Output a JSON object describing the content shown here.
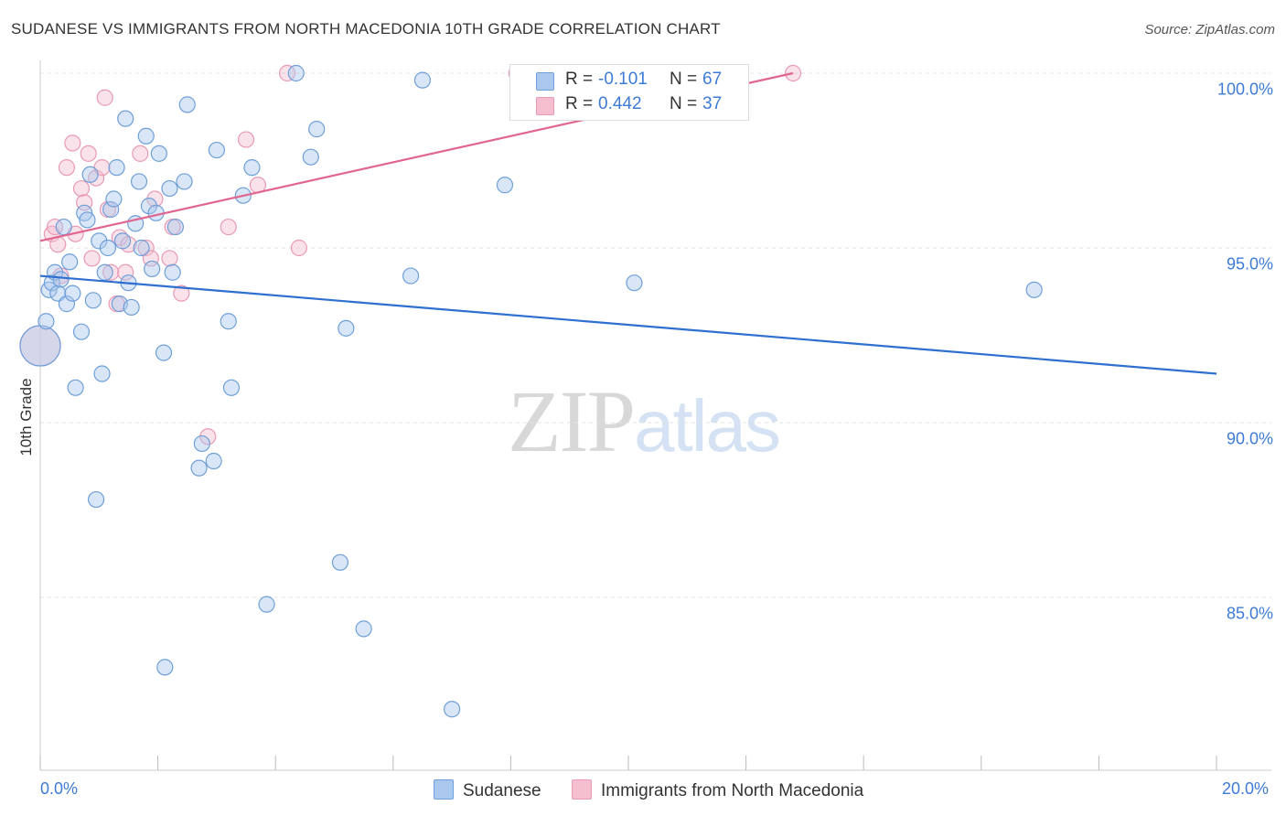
{
  "header": {
    "title": "SUDANESE VS IMMIGRANTS FROM NORTH MACEDONIA 10TH GRADE CORRELATION CHART",
    "source": "Source: ZipAtlas.com"
  },
  "watermark": {
    "zip": "ZIP",
    "atlas": "atlas"
  },
  "legend": {
    "r_label": "R =",
    "n_label": "N =",
    "sudanese": {
      "r": "-0.101",
      "n": "67"
    },
    "macedonia": {
      "r": "0.442",
      "n": "37"
    }
  },
  "bottom_legend": {
    "sudanese": "Sudanese",
    "macedonia": "Immigrants from North Macedonia"
  },
  "axes": {
    "ylabel": "10th Grade",
    "x_min_label": "0.0%",
    "x_max_label": "20.0%",
    "y_ticks": [
      "100.0%",
      "95.0%",
      "90.0%",
      "85.0%"
    ]
  },
  "colors": {
    "sudanese_fill": "#aac8ee",
    "sudanese_stroke": "#6f9fd8",
    "sudanese_line": "#2f6fcf",
    "macedonia_fill": "#f5bfd0",
    "macedonia_stroke": "#e99ab4",
    "macedonia_line": "#e06690",
    "tick_text": "#3d7bd6",
    "grid": "#e3e3e3"
  },
  "chart_data": {
    "type": "scatter",
    "title": "SUDANESE VS IMMIGRANTS FROM NORTH MACEDONIA 10TH GRADE CORRELATION CHART",
    "xlabel": "",
    "ylabel": "10th Grade",
    "xlim": [
      0,
      20
    ],
    "ylim": [
      80.5,
      100.8
    ],
    "y_gridlines": [
      100,
      95,
      90,
      85
    ],
    "series": [
      {
        "name": "Sudanese",
        "r": -0.101,
        "n": 67,
        "trend": {
          "x": [
            0,
            20
          ],
          "y": [
            94.2,
            91.4
          ]
        },
        "points": [
          {
            "x": 0.0,
            "y": 92.2,
            "big": true
          },
          {
            "x": 0.1,
            "y": 92.9
          },
          {
            "x": 0.15,
            "y": 93.8
          },
          {
            "x": 0.2,
            "y": 94.0
          },
          {
            "x": 0.25,
            "y": 94.3
          },
          {
            "x": 0.3,
            "y": 93.7
          },
          {
            "x": 0.35,
            "y": 94.1
          },
          {
            "x": 0.4,
            "y": 95.6
          },
          {
            "x": 0.45,
            "y": 93.4
          },
          {
            "x": 0.5,
            "y": 94.6
          },
          {
            "x": 0.55,
            "y": 93.7
          },
          {
            "x": 0.6,
            "y": 91.0
          },
          {
            "x": 0.7,
            "y": 92.6
          },
          {
            "x": 0.75,
            "y": 96.0
          },
          {
            "x": 0.8,
            "y": 95.8
          },
          {
            "x": 0.85,
            "y": 97.1
          },
          {
            "x": 0.9,
            "y": 93.5
          },
          {
            "x": 0.95,
            "y": 87.8
          },
          {
            "x": 1.0,
            "y": 95.2
          },
          {
            "x": 1.05,
            "y": 91.4
          },
          {
            "x": 1.1,
            "y": 94.3
          },
          {
            "x": 1.15,
            "y": 95.0
          },
          {
            "x": 1.2,
            "y": 96.1
          },
          {
            "x": 1.25,
            "y": 96.4
          },
          {
            "x": 1.3,
            "y": 97.3
          },
          {
            "x": 1.35,
            "y": 93.4
          },
          {
            "x": 1.4,
            "y": 95.2
          },
          {
            "x": 1.45,
            "y": 98.7
          },
          {
            "x": 1.5,
            "y": 94.0
          },
          {
            "x": 1.55,
            "y": 93.3
          },
          {
            "x": 1.62,
            "y": 95.7
          },
          {
            "x": 1.68,
            "y": 96.9
          },
          {
            "x": 1.72,
            "y": 95.0
          },
          {
            "x": 1.8,
            "y": 98.2
          },
          {
            "x": 1.85,
            "y": 96.2
          },
          {
            "x": 1.9,
            "y": 94.4
          },
          {
            "x": 1.97,
            "y": 96.0
          },
          {
            "x": 2.02,
            "y": 97.7
          },
          {
            "x": 2.1,
            "y": 92.0
          },
          {
            "x": 2.12,
            "y": 83.0
          },
          {
            "x": 2.2,
            "y": 96.7
          },
          {
            "x": 2.25,
            "y": 94.3
          },
          {
            "x": 2.3,
            "y": 95.6
          },
          {
            "x": 2.45,
            "y": 96.9
          },
          {
            "x": 2.5,
            "y": 99.1
          },
          {
            "x": 2.7,
            "y": 88.7
          },
          {
            "x": 2.75,
            "y": 89.4
          },
          {
            "x": 2.95,
            "y": 88.9
          },
          {
            "x": 3.0,
            "y": 97.8
          },
          {
            "x": 3.2,
            "y": 92.9
          },
          {
            "x": 3.25,
            "y": 91.0
          },
          {
            "x": 3.45,
            "y": 96.5
          },
          {
            "x": 3.6,
            "y": 97.3
          },
          {
            "x": 3.85,
            "y": 84.8
          },
          {
            "x": 4.35,
            "y": 100.0
          },
          {
            "x": 4.6,
            "y": 97.6
          },
          {
            "x": 4.7,
            "y": 98.4
          },
          {
            "x": 5.1,
            "y": 86.0
          },
          {
            "x": 5.2,
            "y": 92.7
          },
          {
            "x": 5.5,
            "y": 84.1
          },
          {
            "x": 6.3,
            "y": 94.2
          },
          {
            "x": 6.5,
            "y": 99.8
          },
          {
            "x": 7.0,
            "y": 81.8
          },
          {
            "x": 7.9,
            "y": 96.8
          },
          {
            "x": 10.1,
            "y": 94.0
          },
          {
            "x": 16.9,
            "y": 93.8
          }
        ]
      },
      {
        "name": "Immigrants from North Macedonia",
        "r": 0.442,
        "n": 37,
        "trend": {
          "x": [
            0,
            12.8
          ],
          "y": [
            95.2,
            100.0
          ]
        },
        "points": [
          {
            "x": 0.0,
            "y": 92.2,
            "big": true
          },
          {
            "x": 0.2,
            "y": 95.4
          },
          {
            "x": 0.25,
            "y": 95.6
          },
          {
            "x": 0.3,
            "y": 95.1
          },
          {
            "x": 0.35,
            "y": 94.2
          },
          {
            "x": 0.45,
            "y": 97.3
          },
          {
            "x": 0.55,
            "y": 98.0
          },
          {
            "x": 0.6,
            "y": 95.4
          },
          {
            "x": 0.7,
            "y": 96.7
          },
          {
            "x": 0.75,
            "y": 96.3
          },
          {
            "x": 0.82,
            "y": 97.7
          },
          {
            "x": 0.88,
            "y": 94.7
          },
          {
            "x": 0.95,
            "y": 97.0
          },
          {
            "x": 1.05,
            "y": 97.3
          },
          {
            "x": 1.1,
            "y": 99.3
          },
          {
            "x": 1.15,
            "y": 96.1
          },
          {
            "x": 1.2,
            "y": 94.3
          },
          {
            "x": 1.3,
            "y": 93.4
          },
          {
            "x": 1.35,
            "y": 95.3
          },
          {
            "x": 1.45,
            "y": 94.3
          },
          {
            "x": 1.5,
            "y": 95.1
          },
          {
            "x": 1.7,
            "y": 97.7
          },
          {
            "x": 1.8,
            "y": 95.0
          },
          {
            "x": 1.88,
            "y": 94.7
          },
          {
            "x": 1.95,
            "y": 96.4
          },
          {
            "x": 2.2,
            "y": 94.7
          },
          {
            "x": 2.25,
            "y": 95.6
          },
          {
            "x": 2.4,
            "y": 93.7
          },
          {
            "x": 2.85,
            "y": 89.6
          },
          {
            "x": 3.2,
            "y": 95.6
          },
          {
            "x": 3.5,
            "y": 98.1
          },
          {
            "x": 3.7,
            "y": 96.8
          },
          {
            "x": 4.2,
            "y": 100.0
          },
          {
            "x": 4.4,
            "y": 95.0
          },
          {
            "x": 8.1,
            "y": 100.0
          },
          {
            "x": 12.8,
            "y": 100.0
          }
        ]
      }
    ]
  }
}
